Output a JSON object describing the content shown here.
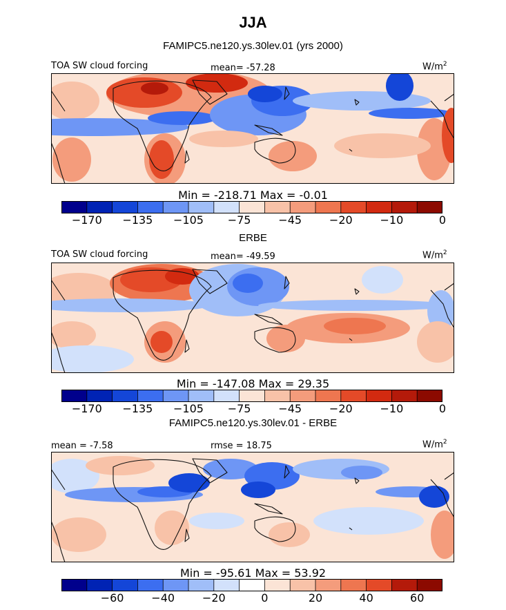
{
  "figure": {
    "title": "JJA",
    "model_title": "FAMIPC5.ne120.ys.30lev.01 (yrs 2000)",
    "obs_title": "ERBE",
    "diff_title": "FAMIPC5.ne120.ys.30lev.01 - ERBE"
  },
  "chart_data": [
    {
      "type": "heatmap",
      "name": "model",
      "variable": "TOA SW cloud forcing",
      "units_base": "W/m",
      "units_exp": "2",
      "mean_text": "mean= -57.28",
      "min_max_text": "Min = -218.71 Max =  -0.01",
      "colorbar_levels": [
        -170,
        -150,
        -135,
        -120,
        -105,
        -90,
        -75,
        -60,
        -45,
        -30,
        -20,
        -15,
        -10,
        -5,
        0
      ],
      "colorbar_tick_labels": [
        "-170",
        "-135",
        "-105",
        "-75",
        "-45",
        "-20",
        "-10",
        "0"
      ],
      "colors": [
        "#00008c",
        "#0023b4",
        "#1446d8",
        "#3c6ef0",
        "#6e96f5",
        "#a0bef8",
        "#d2e1fb",
        "#fbe4d6",
        "#f8c2a8",
        "#f49c7c",
        "#ee7650",
        "#e44a28",
        "#d22a10",
        "#b41a0a",
        "#8c0a00"
      ]
    },
    {
      "type": "heatmap",
      "name": "obs",
      "variable": "TOA SW cloud forcing",
      "units_base": "W/m",
      "units_exp": "2",
      "mean_text": "mean= -49.59",
      "min_max_text": "Min = -147.08 Max =  29.35",
      "colorbar_levels": [
        -170,
        -150,
        -135,
        -120,
        -105,
        -90,
        -75,
        -60,
        -45,
        -30,
        -20,
        -15,
        -10,
        -5,
        0
      ],
      "colorbar_tick_labels": [
        "-170",
        "-135",
        "-105",
        "-75",
        "-45",
        "-20",
        "-10",
        "0"
      ],
      "colors": [
        "#00008c",
        "#0023b4",
        "#1446d8",
        "#3c6ef0",
        "#6e96f5",
        "#a0bef8",
        "#d2e1fb",
        "#fbe4d6",
        "#f8c2a8",
        "#f49c7c",
        "#ee7650",
        "#e44a28",
        "#d22a10",
        "#b41a0a",
        "#8c0a00"
      ]
    },
    {
      "type": "heatmap",
      "name": "difference",
      "variable": "",
      "units_base": "W/m",
      "units_exp": "2",
      "mean_text": "mean =  -7.58",
      "rmse_text": "rmse =  18.75",
      "min_max_text": "Min = -95.61 Max =  53.92",
      "colorbar_levels": [
        -70,
        -60,
        -50,
        -40,
        -30,
        -20,
        -10,
        0,
        10,
        20,
        30,
        40,
        50,
        60,
        70
      ],
      "colorbar_tick_labels": [
        "-60",
        "-40",
        "-20",
        "0",
        "20",
        "40",
        "60"
      ],
      "colors": [
        "#00008c",
        "#0023b4",
        "#1446d8",
        "#3c6ef0",
        "#6e96f5",
        "#a0bef8",
        "#d2e1fb",
        "#ffffff",
        "#fbe4d6",
        "#f8c2a8",
        "#f49c7c",
        "#ee7650",
        "#e44a28",
        "#b41a0a",
        "#8c0a00"
      ]
    }
  ]
}
